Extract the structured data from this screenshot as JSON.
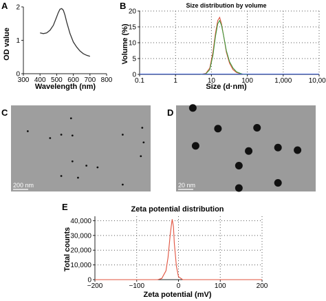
{
  "panels": {
    "A": {
      "letter": "A"
    },
    "B": {
      "letter": "B"
    },
    "C": {
      "letter": "C",
      "scale_bar": "200 nm"
    },
    "D": {
      "letter": "D",
      "scale_bar": "20 nm"
    },
    "E": {
      "letter": "E"
    }
  },
  "chart_data": [
    {
      "id": "A",
      "type": "line",
      "title": "",
      "xlabel": "Wavelength (nm)",
      "ylabel": "OD value",
      "xlim": [
        300,
        800
      ],
      "ylim": [
        0,
        2
      ],
      "xticks": [
        "300",
        "400",
        "500",
        "600",
        "700",
        "800"
      ],
      "yticks": [
        "0",
        "1",
        "2"
      ],
      "series": [
        {
          "x": [
            400,
            420,
            440,
            460,
            480,
            500,
            510,
            520,
            530,
            540,
            550,
            560,
            580,
            600,
            620,
            640,
            660,
            680,
            700
          ],
          "y": [
            1.22,
            1.2,
            1.22,
            1.3,
            1.45,
            1.7,
            1.83,
            1.93,
            1.95,
            1.9,
            1.75,
            1.55,
            1.2,
            0.95,
            0.8,
            0.68,
            0.6,
            0.55,
            0.52
          ]
        }
      ],
      "color": "#333333"
    },
    {
      "id": "B",
      "type": "line",
      "title": "Size distribution by volume",
      "xlabel": "Size (d·nm)",
      "ylabel": "Volume (%)",
      "xscale": "log",
      "xlim": [
        0.1,
        10000
      ],
      "ylim": [
        0,
        20
      ],
      "xticks": [
        "0.1",
        "1",
        "10",
        "100",
        "1,000",
        "10,000"
      ],
      "yticks": [
        "0",
        "5",
        "10",
        "15",
        "20"
      ],
      "grid": "dotted",
      "series": [
        {
          "x": [
            5,
            7,
            9,
            11,
            13,
            15,
            17,
            19,
            22,
            26,
            32,
            40,
            50,
            65,
            80,
            100
          ],
          "y": [
            0,
            0.3,
            2,
            7,
            13,
            17,
            18,
            16,
            12,
            7,
            3.5,
            1.5,
            0.6,
            0.2,
            0,
            0
          ],
          "color": "#e0503c"
        },
        {
          "x": [
            5,
            7,
            9,
            11,
            13,
            15,
            17,
            19,
            22,
            26,
            32,
            40,
            50,
            65,
            80,
            100
          ],
          "y": [
            0,
            0.2,
            1.5,
            6,
            12,
            16,
            17,
            15.5,
            12,
            7.5,
            4,
            2,
            0.8,
            0.3,
            0,
            0
          ],
          "color": "#3a9a3a"
        },
        {
          "x": [
            0.1,
            10000
          ],
          "y": [
            0.08,
            0.08
          ],
          "color": "#3c5fd0"
        }
      ]
    },
    {
      "id": "E",
      "type": "line",
      "title": "Zeta potential distribution",
      "xlabel": "Zeta potential (mV)",
      "ylabel": "Total counts",
      "xlim": [
        -200,
        200
      ],
      "ylim": [
        0,
        43000
      ],
      "xticks": [
        "−200",
        "−100",
        "0",
        "100",
        "200"
      ],
      "yticks": [
        "0",
        "10,000",
        "20,000",
        "30,000",
        "40,000"
      ],
      "grid": "dotted",
      "series": [
        {
          "x": [
            -200,
            -80,
            -50,
            -40,
            -30,
            -25,
            -20,
            -17,
            -15,
            -12,
            -10,
            -5,
            0,
            10,
            200
          ],
          "y": [
            0,
            0,
            0,
            800,
            6000,
            15000,
            30000,
            37000,
            41000,
            36000,
            25000,
            9000,
            2000,
            0,
            0
          ],
          "color": "#e0503c"
        }
      ]
    }
  ],
  "micrographs": {
    "C": {
      "particles": [
        [
          0.12,
          0.3
        ],
        [
          0.28,
          0.38
        ],
        [
          0.36,
          0.34
        ],
        [
          0.43,
          0.15
        ],
        [
          0.44,
          0.35
        ],
        [
          0.8,
          0.34
        ],
        [
          0.94,
          0.26
        ],
        [
          0.95,
          0.43
        ],
        [
          0.93,
          0.59
        ],
        [
          0.44,
          0.65
        ],
        [
          0.54,
          0.7
        ],
        [
          0.62,
          0.72
        ],
        [
          0.48,
          0.84
        ],
        [
          0.36,
          0.82
        ],
        [
          0.8,
          0.92
        ]
      ],
      "radius": 1.4
    },
    "D": {
      "particles": [
        [
          0.12,
          0.03
        ],
        [
          0.3,
          0.27
        ],
        [
          0.58,
          0.26
        ],
        [
          0.14,
          0.47
        ],
        [
          0.52,
          0.53
        ],
        [
          0.73,
          0.49
        ],
        [
          0.87,
          0.52
        ],
        [
          0.45,
          0.7
        ],
        [
          0.73,
          0.9
        ],
        [
          0.45,
          0.96
        ]
      ],
      "radius": 5.5
    }
  }
}
